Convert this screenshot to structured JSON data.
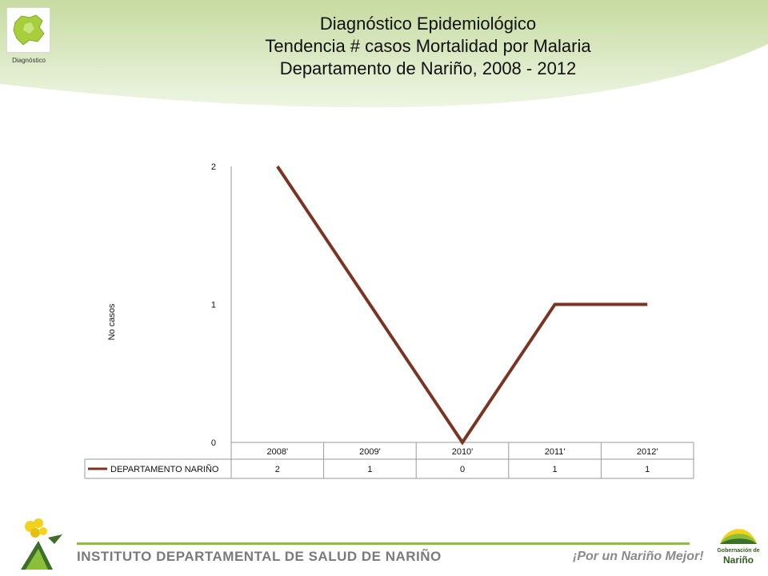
{
  "header": {
    "logo_caption": "Diagnóstico",
    "title_lines": [
      "Diagnóstico Epidemiológico",
      "Tendencia # casos Mortalidad por Malaria",
      "Departamento de Nariño,  2008 - 2012"
    ]
  },
  "chart_data": {
    "type": "line",
    "title": "",
    "xlabel": "",
    "ylabel": "No  casos",
    "categories": [
      "2008'",
      "2009'",
      "2010'",
      "2011'",
      "2012'"
    ],
    "series": [
      {
        "name": "DEPARTAMENTO NARIÑO",
        "values": [
          2,
          1,
          0,
          1,
          1
        ],
        "color": "#7a3522"
      }
    ],
    "ylim": [
      0,
      2
    ],
    "yticks": [
      0,
      1,
      2
    ],
    "grid": false,
    "legend": "data-table",
    "table_values": [
      "2",
      "1",
      "0",
      "1",
      "1"
    ]
  },
  "footer": {
    "institute": "INSTITUTO DEPARTAMENTAL DE SALUD DE NARIÑO",
    "slogan": "¡Por un Nariño Mejor!",
    "gob_line1": "Gobernación de",
    "gob_line2": "Nariño"
  },
  "colors": {
    "accent_green": "#8bbf3a",
    "series_line": "#7a3522",
    "logo_green": "#a7cf3b"
  }
}
